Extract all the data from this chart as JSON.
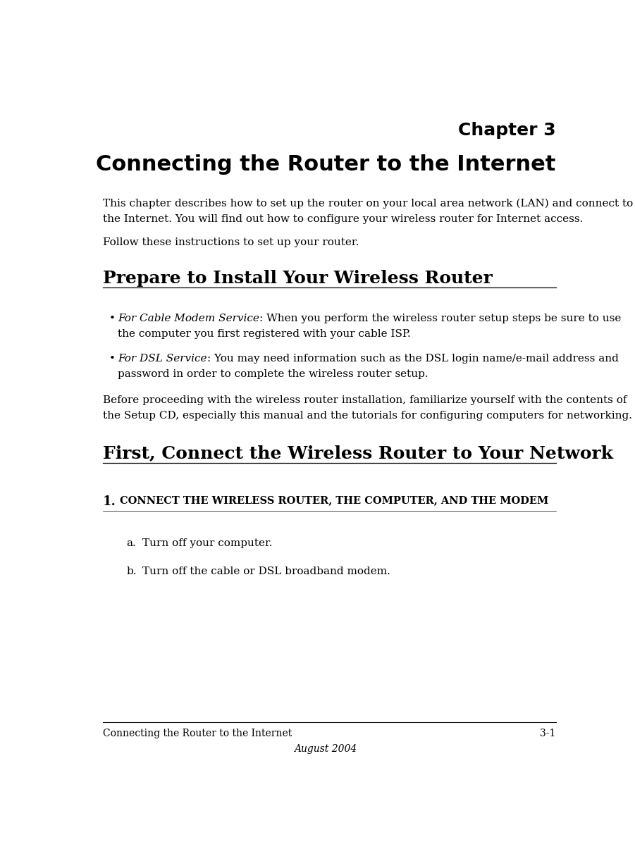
{
  "bg_color": "#ffffff",
  "title_line1": "Chapter 3",
  "title_line2": "Connecting the Router to the Internet",
  "title_fontsize": 22,
  "title_line1_fontsize": 18,
  "body_text_1a": "This chapter describes how to set up the router on your local area network (LAN) and connect to",
  "body_text_1b": "the Internet. You will find out how to configure your wireless router for Internet access.",
  "body_text_2": "Follow these instructions to set up your router.",
  "section1_title": "Prepare to Install Your Wireless Router",
  "section1_fontsize": 18,
  "bullet1_italic": "For Cable Modem Service",
  "bullet1_rest_line1": ": When you perform the wireless router setup steps be sure to use",
  "bullet1_rest_line2": "the computer you first registered with your cable ISP.",
  "bullet2_italic": "For DSL Service",
  "bullet2_rest_line1": ": You may need information such as the DSL login name/e-mail address and",
  "bullet2_rest_line2": "password in order to complete the wireless router setup.",
  "before_text_1": "Before proceeding with the wireless router installation, familiarize yourself with the contents of",
  "before_text_2": "the Setup CD, especially this manual and the tutorials for configuring computers for networking.",
  "section2_title": "First, Connect the Wireless Router to Your Network",
  "section2_fontsize": 18,
  "step1_num": "1.",
  "step1_title_sc": "Connect",
  "step1_title_full": "CONNECT THE WIRELESS ROUTER, THE COMPUTER, AND THE MODEM",
  "step_a_label": "a.",
  "step_a_text": "Turn off your computer.",
  "step_b_label": "b.",
  "step_b_text": "Turn off the cable or DSL broadband modem.",
  "footer_left": "Connecting the Router to the Internet",
  "footer_right": "3-1",
  "footer_center": "August 2004",
  "footer_fontsize": 10,
  "body_fontsize": 11,
  "bullet_fontsize": 11,
  "step_fontsize": 11
}
